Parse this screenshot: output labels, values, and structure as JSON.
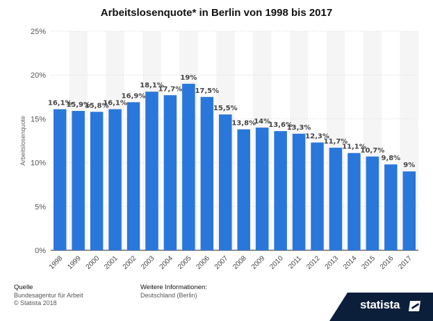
{
  "chart_data": {
    "type": "bar",
    "title": "Arbeitslosenquote* in Berlin von 1998 bis 2017",
    "ylabel": "Arbeitslosenquote",
    "categories": [
      "1998",
      "1999",
      "2000",
      "2001",
      "2002",
      "2003",
      "2004",
      "2005",
      "2006",
      "2007",
      "2008",
      "2009",
      "2010",
      "2011",
      "2012",
      "2013",
      "2014",
      "2015",
      "2016",
      "2017"
    ],
    "values": [
      16.1,
      15.9,
      15.8,
      16.1,
      16.9,
      18.1,
      17.7,
      19,
      17.5,
      15.5,
      13.8,
      14,
      13.6,
      13.3,
      12.3,
      11.7,
      11.1,
      10.7,
      9.8,
      9
    ],
    "value_labels": [
      "16,1%",
      "15,9%",
      "15,8%",
      "16,1%",
      "16,9%",
      "18,1%",
      "17,7%",
      "19%",
      "17,5%",
      "15,5%",
      "13,8%",
      "14%",
      "13,6%",
      "13,3%",
      "12,3%",
      "11,7%",
      "11,1%",
      "10,7%",
      "9,8%",
      "9%"
    ],
    "ylim": [
      0,
      25
    ],
    "yticks": [
      0,
      5,
      10,
      15,
      20,
      25
    ],
    "ytick_labels": [
      "0%",
      "5%",
      "10%",
      "15%",
      "20%",
      "25%"
    ],
    "grid": true,
    "bar_color": "#2a77dc"
  },
  "footer": {
    "source_heading": "Quelle",
    "source_text": "Bundesagentur für Arbeit",
    "copyright": "© Statista 2018",
    "info_heading": "Weitere Informationen:",
    "info_text": "Deutschland (Berlin)"
  },
  "brand": {
    "name": "statista",
    "icon": "statista-logo-icon",
    "background": "#0b1f3a"
  }
}
